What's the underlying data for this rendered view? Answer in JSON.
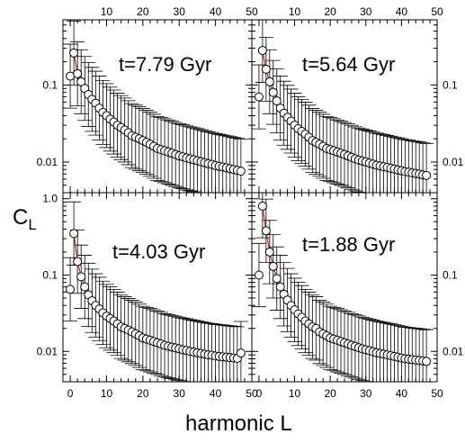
{
  "figure": {
    "ylabel": "CL",
    "ylabel_main": "C",
    "ylabel_sub": "L",
    "xlabel": "harmonic L",
    "x_ticks": [
      0,
      10,
      20,
      30,
      40,
      50
    ],
    "x_tick_labels": [
      "0",
      "10",
      "20",
      "30",
      "40",
      "50"
    ],
    "xlim": [
      -2,
      50
    ],
    "log_y": true
  },
  "chart_data": [
    {
      "type": "scatter",
      "title": "t=7.79 Gyr",
      "ylim": [
        0.004,
        0.7
      ],
      "y_tick_labels": [
        "0.1",
        "0.01"
      ],
      "y_ticks": [
        0.1,
        0.01
      ],
      "series": [
        {
          "x": [
            0,
            1,
            2,
            3,
            4,
            5,
            6,
            7,
            8,
            9,
            10,
            11,
            12,
            13,
            14,
            15,
            16,
            17,
            18,
            19,
            20,
            21,
            22,
            23,
            24,
            25,
            26,
            27,
            28,
            29,
            30,
            31,
            32,
            33,
            34,
            35,
            36,
            37,
            38,
            39,
            40,
            41,
            42,
            43,
            44,
            45,
            46,
            47
          ],
          "y": [
            0.13,
            0.26,
            0.14,
            0.11,
            0.09,
            0.075,
            0.065,
            0.058,
            0.05,
            0.044,
            0.04,
            0.036,
            0.033,
            0.03,
            0.028,
            0.026,
            0.024,
            0.022,
            0.021,
            0.02,
            0.019,
            0.018,
            0.017,
            0.016,
            0.015,
            0.0145,
            0.014,
            0.0135,
            0.013,
            0.0125,
            0.012,
            0.0117,
            0.0113,
            0.011,
            0.0107,
            0.0104,
            0.0101,
            0.0098,
            0.0095,
            0.0093,
            0.009,
            0.0088,
            0.0086,
            0.0084,
            0.0082,
            0.008,
            0.0078,
            0.0076
          ]
        }
      ],
      "model_curve": true,
      "error_bars": true
    },
    {
      "type": "scatter",
      "title": "t=5.64 Gyr",
      "ylim": [
        0.004,
        0.7
      ],
      "y_tick_labels": [
        "0.1",
        "0.01"
      ],
      "y_ticks": [
        0.1,
        0.01
      ],
      "series": [
        {
          "x": [
            0,
            1,
            2,
            3,
            4,
            5,
            6,
            7,
            8,
            9,
            10,
            11,
            12,
            13,
            14,
            15,
            16,
            17,
            18,
            19,
            20,
            21,
            22,
            23,
            24,
            25,
            26,
            27,
            28,
            29,
            30,
            31,
            32,
            33,
            34,
            35,
            36,
            37,
            38,
            39,
            40,
            41,
            42,
            43,
            44,
            45,
            46,
            47
          ],
          "y": [
            0.07,
            0.28,
            0.16,
            0.11,
            0.08,
            0.062,
            0.05,
            0.043,
            0.038,
            0.034,
            0.03,
            0.027,
            0.025,
            0.023,
            0.021,
            0.019,
            0.018,
            0.017,
            0.016,
            0.015,
            0.0145,
            0.014,
            0.0135,
            0.013,
            0.0125,
            0.012,
            0.0115,
            0.011,
            0.0106,
            0.0103,
            0.01,
            0.0097,
            0.0094,
            0.0091,
            0.0089,
            0.0087,
            0.0085,
            0.0083,
            0.0081,
            0.0079,
            0.0077,
            0.0075,
            0.0074,
            0.0072,
            0.0071,
            0.007,
            0.0068,
            0.0067
          ]
        }
      ],
      "model_curve": true,
      "error_bars": true
    },
    {
      "type": "scatter",
      "title": "t=4.03 Gyr",
      "ylim": [
        0.004,
        1.2
      ],
      "y_tick_labels": [
        "1.0",
        "0.1",
        "0.01"
      ],
      "y_ticks": [
        1.0,
        0.1,
        0.01
      ],
      "series": [
        {
          "x": [
            0,
            1,
            2,
            3,
            4,
            5,
            6,
            7,
            8,
            9,
            10,
            11,
            12,
            13,
            14,
            15,
            16,
            17,
            18,
            19,
            20,
            21,
            22,
            23,
            24,
            25,
            26,
            27,
            28,
            29,
            30,
            31,
            32,
            33,
            34,
            35,
            36,
            37,
            38,
            39,
            40,
            41,
            42,
            43,
            44,
            45,
            46,
            47
          ],
          "y": [
            0.065,
            0.35,
            0.15,
            0.095,
            0.07,
            0.055,
            0.046,
            0.04,
            0.036,
            0.032,
            0.029,
            0.027,
            0.025,
            0.023,
            0.021,
            0.02,
            0.019,
            0.018,
            0.017,
            0.016,
            0.015,
            0.0145,
            0.014,
            0.0135,
            0.013,
            0.0125,
            0.012,
            0.0117,
            0.0114,
            0.0111,
            0.0108,
            0.0105,
            0.0103,
            0.01,
            0.0098,
            0.0096,
            0.0094,
            0.0092,
            0.009,
            0.0089,
            0.0087,
            0.0086,
            0.0085,
            0.0084,
            0.0083,
            0.0082,
            0.0081,
            0.0095
          ]
        }
      ],
      "model_curve": true,
      "error_bars": true
    },
    {
      "type": "scatter",
      "title": "t=1.88 Gyr",
      "ylim": [
        0.004,
        1.2
      ],
      "y_tick_labels": [
        "0.1",
        "0.01"
      ],
      "y_ticks": [
        0.1,
        0.01
      ],
      "series": [
        {
          "x": [
            0,
            1,
            2,
            3,
            4,
            5,
            6,
            7,
            8,
            9,
            10,
            11,
            12,
            13,
            14,
            15,
            16,
            17,
            18,
            19,
            20,
            21,
            22,
            23,
            24,
            25,
            26,
            27,
            28,
            29,
            30,
            31,
            32,
            33,
            34,
            35,
            36,
            37,
            38,
            39,
            40,
            41,
            42,
            43,
            44,
            45,
            46,
            47
          ],
          "y": [
            0.1,
            0.8,
            0.38,
            0.2,
            0.13,
            0.09,
            0.07,
            0.056,
            0.047,
            0.04,
            0.035,
            0.031,
            0.028,
            0.025,
            0.023,
            0.021,
            0.02,
            0.018,
            0.017,
            0.016,
            0.015,
            0.0145,
            0.014,
            0.0135,
            0.013,
            0.0125,
            0.012,
            0.0116,
            0.0112,
            0.0108,
            0.0105,
            0.0102,
            0.0099,
            0.0096,
            0.0094,
            0.0092,
            0.009,
            0.0088,
            0.0086,
            0.0084,
            0.0082,
            0.008,
            0.0079,
            0.0078,
            0.0077,
            0.0076,
            0.0075,
            0.0074
          ]
        }
      ],
      "model_curve": true,
      "error_bars": true
    }
  ]
}
